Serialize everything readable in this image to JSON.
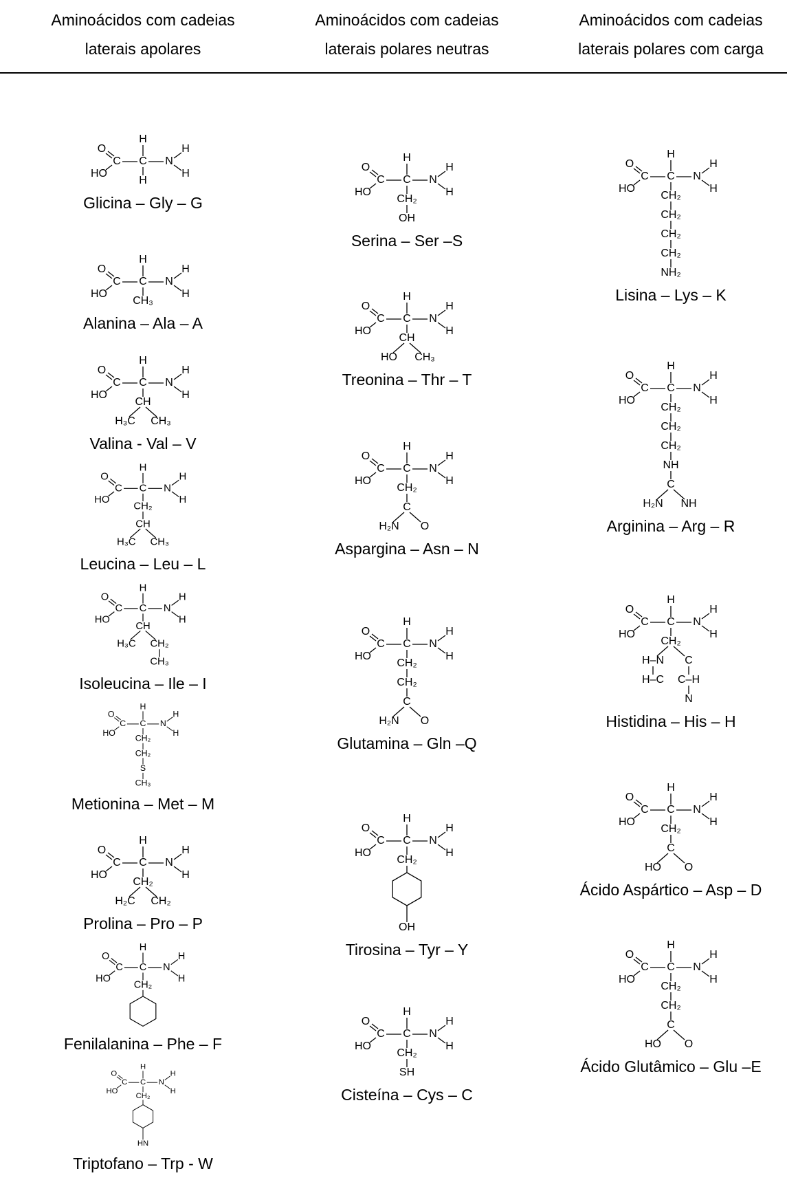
{
  "header": [
    [
      "Aminoácidos com cadeias",
      "laterais apolares"
    ],
    [
      "Aminoácidos com cadeias",
      "laterais polares neutras"
    ],
    [
      "Aminoácidos com cadeias",
      "laterais polares com carga"
    ]
  ],
  "backbone": {
    "o": "O",
    "c": "C",
    "ho": "HO",
    "ca": "C",
    "h": "H",
    "n": "N",
    "nh": "H"
  },
  "columns": [
    {
      "items": [
        {
          "name": "Glicina – Gly – G",
          "side_chain": [
            "H"
          ]
        },
        {
          "name": "Alanina – Ala – A",
          "side_chain": [
            "CH₃"
          ]
        },
        {
          "name": "Valina - Val – V",
          "side_chain": [
            "CH",
            [
              "H₃C",
              "CH₃"
            ]
          ]
        },
        {
          "name": "Leucina – Leu – L",
          "side_chain": [
            "CH₂",
            "CH",
            [
              "H₃C",
              "CH₃"
            ]
          ]
        },
        {
          "name": "Isoleucina – Ile – I",
          "side_chain": [
            "CH",
            [
              "H₃C",
              "CH₂"
            ],
            "CH₃"
          ]
        },
        {
          "name": "Metionina – Met – M",
          "side_chain": [
            "CH₂",
            "CH₂",
            "S",
            "CH₃"
          ]
        },
        {
          "name": "Prolina – Pro – P",
          "side_chain": [
            "CH₂",
            [
              "H₂C",
              "CH₂"
            ]
          ]
        },
        {
          "name": "Fenilalanina – Phe – F",
          "side_chain": [
            "CH₂"
          ]
        },
        {
          "name": "Triptofano – Trp - W",
          "side_chain": [
            "CH₂",
            "HN"
          ]
        }
      ]
    },
    {
      "items": [
        {
          "name": "Serina – Ser –S",
          "side_chain": [
            "CH₂",
            "OH"
          ]
        },
        {
          "name": "Treonina – Thr – T",
          "side_chain": [
            "CH",
            [
              "HO",
              "CH₃"
            ]
          ]
        },
        {
          "name": "Aspargina – Asn – N",
          "side_chain": [
            "CH₂",
            "C",
            [
              "H₂N",
              "O"
            ]
          ]
        },
        {
          "name": "Glutamina – Gln –Q",
          "side_chain": [
            "CH₂",
            "CH₂",
            "C",
            [
              "H₂N",
              "O"
            ]
          ]
        },
        {
          "name": "Tirosina – Tyr – Y",
          "side_chain": [
            "CH₂",
            "OH"
          ]
        },
        {
          "name": "Cisteína – Cys – C",
          "side_chain": [
            "CH₂",
            "SH"
          ]
        }
      ]
    },
    {
      "items": [
        {
          "name": "Lisina – Lys – K",
          "side_chain": [
            "CH₂",
            "CH₂",
            "CH₂",
            "CH₂",
            "NH₂"
          ]
        },
        {
          "name": "Arginina – Arg – R",
          "side_chain": [
            "CH₂",
            "CH₂",
            "CH₂",
            "NH",
            "C",
            [
              "H₂N",
              "NH"
            ]
          ]
        },
        {
          "name": "Histidina – His – H",
          "side_chain": [
            "CH₂",
            [
              "H–N",
              "C"
            ],
            [
              "H–C",
              "C–H"
            ],
            "N"
          ]
        },
        {
          "name": "Ácido Aspártico – Asp – D",
          "side_chain": [
            "CH₂",
            "C",
            [
              "HO",
              "O"
            ]
          ]
        },
        {
          "name": "Ácido Glutâmico – Glu –E",
          "side_chain": [
            "CH₂",
            "CH₂",
            "C",
            [
              "HO",
              "O"
            ]
          ]
        }
      ]
    }
  ]
}
